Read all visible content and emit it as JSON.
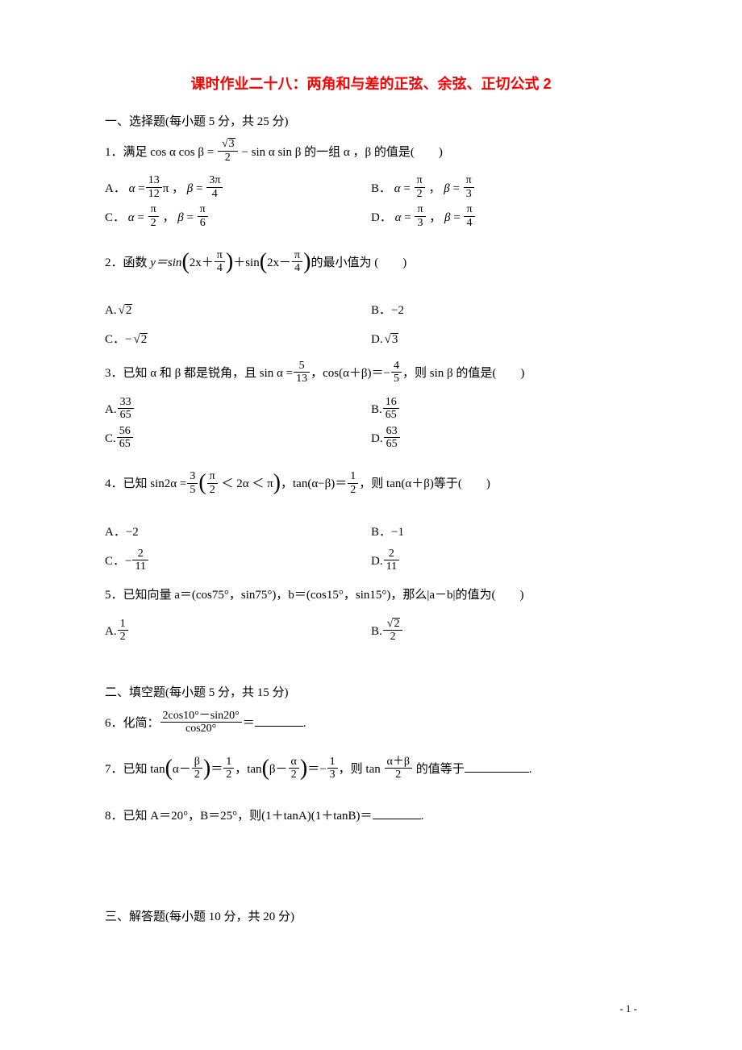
{
  "colors": {
    "title": "#ff0000",
    "body": "#000000",
    "bg": "#ffffff"
  },
  "fonts": {
    "title_size": 18,
    "body_size": 15
  },
  "title": "课时作业二十八：两角和与差的正弦、余弦、正切公式 2",
  "section1": {
    "heading": "一、选择题(每小题 5 分，共 25 分)",
    "q1": {
      "stem_pre": "1．满足 cos α cos β = ",
      "frac": {
        "num_sqrt": "3",
        "den": "2"
      },
      "stem_post": " − sin α sin β 的一组 α ，β 的值是(　　)",
      "opts": {
        "A": {
          "label": "A．",
          "alpha_frac": {
            "n": "13",
            "d": "12"
          },
          "alpha_suffix": "π ，",
          "beta_frac": {
            "n": "3π",
            "d": "4"
          }
        },
        "B": {
          "label": "B．",
          "alpha_frac": {
            "n": "π",
            "d": "2"
          },
          "alpha_suffix": " ，",
          "beta_frac": {
            "n": "π",
            "d": "3"
          }
        },
        "C": {
          "label": "C．",
          "alpha_frac": {
            "n": "π",
            "d": "2"
          },
          "alpha_suffix": " ，",
          "beta_frac": {
            "n": "π",
            "d": "6"
          }
        },
        "D": {
          "label": "D．",
          "alpha_frac": {
            "n": "π",
            "d": "3"
          },
          "alpha_suffix": " ，",
          "beta_frac": {
            "n": "π",
            "d": "4"
          }
        }
      }
    },
    "q2": {
      "stem_pre": "2．函数 ",
      "y_eq": "y＝sin",
      "arg1": {
        "inner": "2x＋",
        "frac": {
          "n": "π",
          "d": "4"
        }
      },
      "plus": "＋sin",
      "arg2": {
        "inner": "2x－",
        "frac": {
          "n": "π",
          "d": "4"
        }
      },
      "stem_post": "的最小值为 (　　)",
      "opts": {
        "A": {
          "label": "A.",
          "sqrt": "2"
        },
        "B": {
          "label": "B．",
          "val": "−2"
        },
        "C": {
          "label": "C．",
          "neg_sqrt": "2"
        },
        "D": {
          "label": "D.",
          "sqrt": "3"
        }
      }
    },
    "q3": {
      "stem_pre": "3．已知 α 和 β 都是锐角，且 sin α =",
      "f1": {
        "n": "5",
        "d": "13"
      },
      "mid": "，cos(α＋β)＝−",
      "f2": {
        "n": "4",
        "d": "5"
      },
      "stem_post": "，则 sin β 的值是(　　)",
      "opts": {
        "A": {
          "label": "A.",
          "frac": {
            "n": "33",
            "d": "65"
          }
        },
        "B": {
          "label": "B.",
          "frac": {
            "n": "16",
            "d": "65"
          }
        },
        "C": {
          "label": "C.",
          "frac": {
            "n": "56",
            "d": "65"
          }
        },
        "D": {
          "label": "D.",
          "frac": {
            "n": "63",
            "d": "65"
          }
        }
      }
    },
    "q4": {
      "stem_pre": "4．已知 sin2α =",
      "f1": {
        "n": "3",
        "d": "5"
      },
      "cond_l": "(",
      "cond_f": {
        "n": "π",
        "d": "2"
      },
      "cond_mid": " ＜ 2α ＜ π",
      "cond_r": ")",
      "mid": "，tan(α−β)＝",
      "f2": {
        "n": "1",
        "d": "2"
      },
      "stem_post": "，则 tan(α＋β)等于(　　)",
      "opts": {
        "A": {
          "label": "A．",
          "val": "−2"
        },
        "B": {
          "label": "B．",
          "val": "−1"
        },
        "C": {
          "label": "C．",
          "neg_frac": {
            "n": "2",
            "d": "11"
          }
        },
        "D": {
          "label": "D.",
          "frac": {
            "n": "2",
            "d": "11"
          }
        }
      }
    },
    "q5": {
      "stem": "5．已知向量 a＝(cos75°，sin75°)，b＝(cos15°，sin15°)，那么|a－b|的值为(　　)",
      "opts": {
        "A": {
          "label": "A.",
          "frac": {
            "n": "1",
            "d": "2"
          }
        },
        "B": {
          "label": "B.",
          "frac_sqrt": {
            "n_sqrt": "2",
            "d": "2"
          }
        }
      }
    }
  },
  "section2": {
    "heading": "二、填空题(每小题 5 分，共 15 分)",
    "q6": {
      "pre": "6．化简：",
      "frac": {
        "n": "2cos10°－sin20°",
        "d": "cos20°"
      },
      "post": "＝",
      "tail": "."
    },
    "q7": {
      "pre": "7．已知 tan",
      "p1_in": "α－",
      "p1_f": {
        "n": "β",
        "d": "2"
      },
      "eq1": "＝",
      "f1": {
        "n": "1",
        "d": "2"
      },
      "mid": "，tan",
      "p2_in": "β－",
      "p2_f": {
        "n": "α",
        "d": "2"
      },
      "eq2": "＝−",
      "f2": {
        "n": "1",
        "d": "3"
      },
      "then": "，则 tan ",
      "f3": {
        "n": "α＋β",
        "d": "2"
      },
      "post": " 的值等于",
      "tail": "."
    },
    "q8": {
      "text": "8．已知 A＝20°，B＝25°，则(1＋tanA)(1＋tanB)＝",
      "tail": "."
    }
  },
  "section3": {
    "heading": "三、解答题(每小题 10 分，共 20 分)"
  },
  "footer": "- 1 -"
}
